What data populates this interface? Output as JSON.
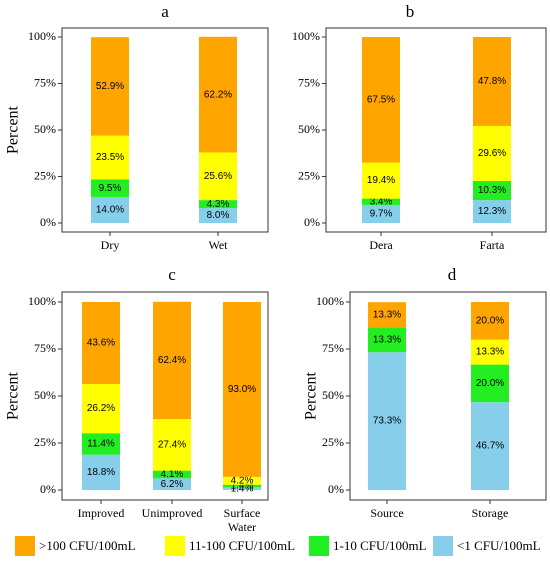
{
  "chart_data": [
    {
      "type": "bar",
      "stacked": true,
      "title": "a",
      "ylabel": "Percent",
      "categories": [
        "Dry",
        "Wet"
      ],
      "series": [
        {
          "values": [
            52.9,
            62.2
          ],
          "value_labels": [
            "52.9%",
            "62.2%"
          ]
        },
        {
          "values": [
            23.5,
            25.6
          ],
          "value_labels": [
            "23.5%",
            "25.6%"
          ]
        },
        {
          "values": [
            9.5,
            4.3
          ],
          "value_labels": [
            "9.5%",
            "4.3%"
          ]
        },
        {
          "values": [
            14.0,
            8.0
          ],
          "value_labels": [
            "14.0%",
            "8.0%"
          ]
        }
      ],
      "ylim": [
        0,
        100
      ],
      "yticks": [
        {
          "value": 0,
          "label": "0%"
        },
        {
          "value": 25,
          "label": "25%"
        },
        {
          "value": 50,
          "label": "50%"
        },
        {
          "value": 75,
          "label": "75%"
        },
        {
          "value": 100,
          "label": "100%"
        }
      ]
    },
    {
      "type": "bar",
      "stacked": true,
      "title": "b",
      "categories": [
        "Dera",
        "Farta"
      ],
      "series": [
        {
          "values": [
            67.5,
            47.8
          ],
          "value_labels": [
            "67.5%",
            "47.8%"
          ]
        },
        {
          "values": [
            19.4,
            29.6
          ],
          "value_labels": [
            "19.4%",
            "29.6%"
          ]
        },
        {
          "values": [
            3.4,
            10.3
          ],
          "value_labels": [
            "3.4%",
            "10.3%"
          ]
        },
        {
          "values": [
            9.7,
            12.3
          ],
          "value_labels": [
            "9.7%",
            "12.3%"
          ]
        }
      ],
      "ylim": [
        0,
        100
      ],
      "yticks": [
        {
          "value": 0,
          "label": "0%"
        },
        {
          "value": 25,
          "label": "25%"
        },
        {
          "value": 50,
          "label": "50%"
        },
        {
          "value": 75,
          "label": "75%"
        },
        {
          "value": 100,
          "label": "100%"
        }
      ]
    },
    {
      "type": "bar",
      "stacked": true,
      "title": "c",
      "ylabel": "Percent",
      "categories": [
        "Improved",
        "Unimproved",
        "Surface Water"
      ],
      "series": [
        {
          "values": [
            43.6,
            62.4,
            93.0
          ],
          "value_labels": [
            "43.6%",
            "62.4%",
            "93.0%"
          ]
        },
        {
          "values": [
            26.2,
            27.4,
            4.2
          ],
          "value_labels": [
            "26.2%",
            "27.4%",
            "4.2%"
          ]
        },
        {
          "values": [
            11.4,
            4.1,
            1.4
          ],
          "value_labels": [
            "11.4%",
            "4.1%",
            "1.4%"
          ]
        },
        {
          "values": [
            18.8,
            6.2,
            1.4
          ],
          "value_labels": [
            "18.8%",
            "6.2%",
            "1.4%"
          ]
        }
      ],
      "ylim": [
        0,
        100
      ],
      "yticks": [
        {
          "value": 0,
          "label": "0%"
        },
        {
          "value": 25,
          "label": "25%"
        },
        {
          "value": 50,
          "label": "50%"
        },
        {
          "value": 75,
          "label": "75%"
        },
        {
          "value": 100,
          "label": "100%"
        }
      ]
    },
    {
      "type": "bar",
      "stacked": true,
      "title": "d",
      "ylabel": "Percent",
      "categories": [
        "Source",
        "Storage"
      ],
      "series": [
        {
          "values": [
            13.3,
            20.0
          ],
          "value_labels": [
            "13.3%",
            "20.0%"
          ]
        },
        {
          "values": [
            0,
            13.3
          ],
          "value_labels": [
            null,
            "13.3%"
          ]
        },
        {
          "values": [
            13.3,
            20.0
          ],
          "value_labels": [
            "13.3%",
            "20.0%"
          ]
        },
        {
          "values": [
            73.3,
            46.7
          ],
          "value_labels": [
            "73.3%",
            "46.7%"
          ]
        }
      ],
      "ylim": [
        0,
        100
      ],
      "yticks": [
        {
          "value": 0,
          "label": "0%"
        },
        {
          "value": 25,
          "label": "25%"
        },
        {
          "value": 50,
          "label": "50%"
        },
        {
          "value": 75,
          "label": "75%"
        },
        {
          "value": 100,
          "label": "100%"
        }
      ]
    }
  ],
  "legend": {
    "labels": [
      ">100 CFU/100mL",
      "11-100 CFU/100mL",
      "1-10 CFU/100mL",
      "<1 CFU/100mL"
    ],
    "colors": [
      "#FFA500",
      "#FFFF00",
      "#22EE22",
      "#87CEEB"
    ]
  }
}
